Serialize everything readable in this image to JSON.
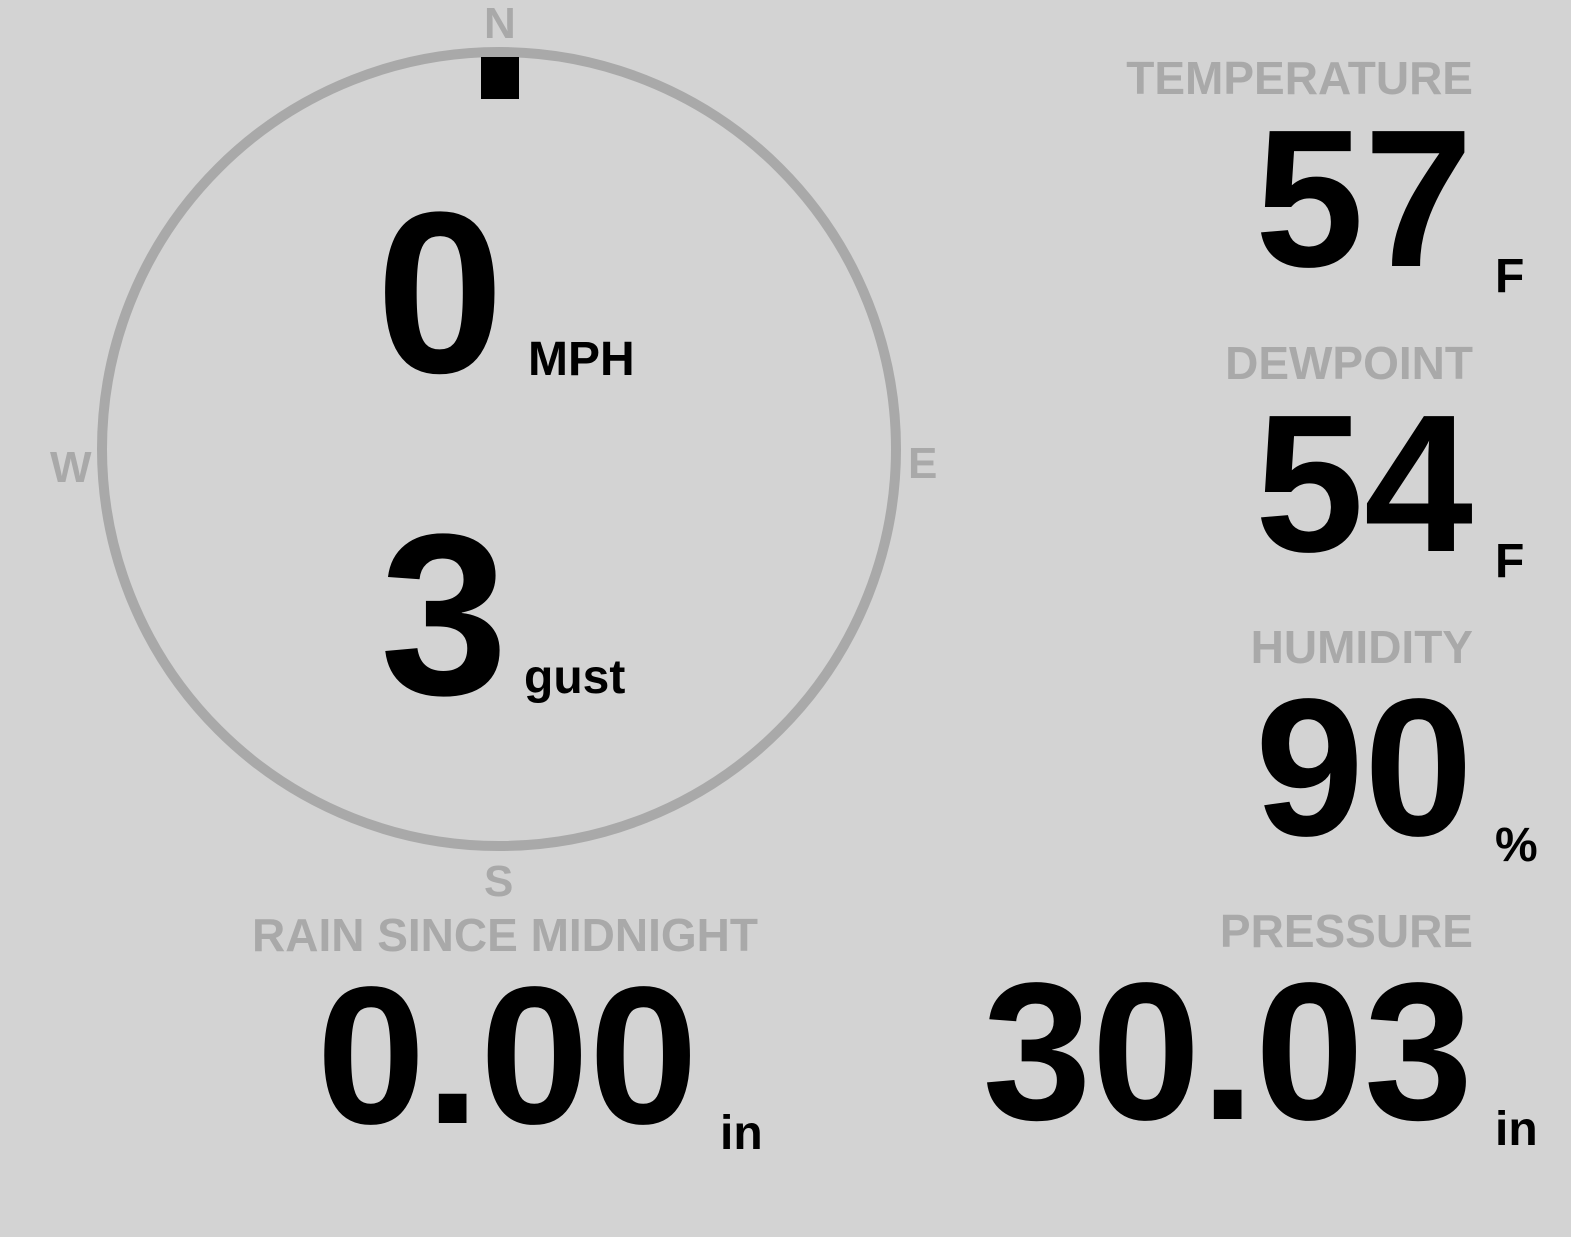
{
  "wind": {
    "speed": "0",
    "speed_unit": "MPH",
    "gust": "3",
    "gust_unit": "gust",
    "direction_degrees": 0,
    "compass": {
      "n": "N",
      "e": "E",
      "s": "S",
      "w": "W"
    }
  },
  "temperature": {
    "label": "TEMPERATURE",
    "value": "57",
    "unit": "F"
  },
  "dewpoint": {
    "label": "DEWPOINT",
    "value": "54",
    "unit": "F"
  },
  "humidity": {
    "label": "HUMIDITY",
    "value": "90",
    "unit": "%"
  },
  "rain": {
    "label": "RAIN SINCE MIDNIGHT",
    "value": "0.00",
    "unit": "in"
  },
  "pressure": {
    "label": "PRESSURE",
    "value": "30.03",
    "unit": "in"
  },
  "colors": {
    "background": "#d3d3d3",
    "muted": "#a9a9a9",
    "value": "#000000"
  }
}
